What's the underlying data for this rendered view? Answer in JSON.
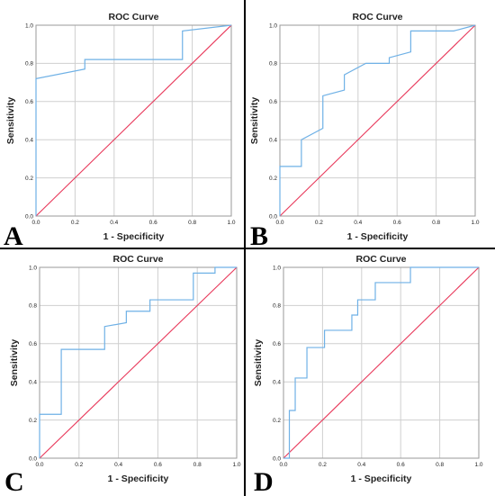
{
  "colors": {
    "roc_curve": "#6fb1e6",
    "reference_line": "#e8385a",
    "grid": "#cfcfcf",
    "divider": "#000000"
  },
  "chart_data": [
    {
      "type": "line",
      "panel_label": "A",
      "title": "ROC Curve",
      "xlabel": "1 - Specificity",
      "ylabel": "Sensitivity",
      "xlim": [
        0,
        1
      ],
      "ylim": [
        0,
        1
      ],
      "xticks": [
        "0.0",
        "0.2",
        "0.4",
        "0.6",
        "0.8",
        "1.0"
      ],
      "yticks": [
        "0.0",
        "0.2",
        "0.4",
        "0.6",
        "0.8",
        "1.0"
      ],
      "grid": true,
      "series": [
        {
          "x": [
            0,
            0,
            0,
            0.25,
            0.25,
            0.75,
            0.75,
            1.0
          ],
          "y": [
            0,
            0.72,
            0.72,
            0.77,
            0.82,
            0.82,
            0.97,
            1.0
          ]
        },
        {
          "x": [
            0,
            1
          ],
          "y": [
            0,
            1
          ]
        }
      ]
    },
    {
      "type": "line",
      "panel_label": "B",
      "title": "ROC Curve",
      "xlabel": "1 - Specificity",
      "ylabel": "Sensitivity",
      "xlim": [
        0,
        1
      ],
      "ylim": [
        0,
        1
      ],
      "xticks": [
        "0.0",
        "0.2",
        "0.4",
        "0.6",
        "0.8",
        "1.0"
      ],
      "yticks": [
        "0.0",
        "0.2",
        "0.4",
        "0.6",
        "0.8",
        "1.0"
      ],
      "grid": true,
      "series": [
        {
          "x": [
            0,
            0,
            0.11,
            0.11,
            0.22,
            0.22,
            0.33,
            0.33,
            0.44,
            0.56,
            0.56,
            0.67,
            0.67,
            0.89,
            1.0
          ],
          "y": [
            0,
            0.26,
            0.26,
            0.4,
            0.46,
            0.63,
            0.66,
            0.74,
            0.8,
            0.8,
            0.83,
            0.86,
            0.97,
            0.97,
            1.0
          ]
        },
        {
          "x": [
            0,
            1
          ],
          "y": [
            0,
            1
          ]
        }
      ]
    },
    {
      "type": "line",
      "panel_label": "C",
      "title": "ROC Curve",
      "xlabel": "1 - Specificity",
      "ylabel": "Sensitivity",
      "xlim": [
        0,
        1
      ],
      "ylim": [
        0,
        1
      ],
      "xticks": [
        "0.0",
        "0.2",
        "0.4",
        "0.6",
        "0.8",
        "1.0"
      ],
      "yticks": [
        "0.0",
        "0.2",
        "0.4",
        "0.6",
        "0.8",
        "1.0"
      ],
      "grid": true,
      "series": [
        {
          "x": [
            0,
            0,
            0.11,
            0.11,
            0.33,
            0.33,
            0.44,
            0.44,
            0.56,
            0.56,
            0.78,
            0.78,
            0.89,
            0.89,
            1.0
          ],
          "y": [
            0,
            0.23,
            0.23,
            0.57,
            0.57,
            0.69,
            0.71,
            0.77,
            0.77,
            0.83,
            0.83,
            0.97,
            0.97,
            1.0,
            1.0
          ]
        },
        {
          "x": [
            0,
            1
          ],
          "y": [
            0,
            1
          ]
        }
      ]
    },
    {
      "type": "line",
      "panel_label": "D",
      "title": "ROC Curve",
      "xlabel": "1 - Specificity",
      "ylabel": "Sensitivity",
      "xlim": [
        0,
        1
      ],
      "ylim": [
        0,
        1
      ],
      "xticks": [
        "0.0",
        "0.2",
        "0.4",
        "0.6",
        "0.8",
        "1.0"
      ],
      "yticks": [
        "0.0",
        "0.2",
        "0.4",
        "0.6",
        "0.8",
        "1.0"
      ],
      "grid": true,
      "series": [
        {
          "x": [
            0,
            0.03,
            0.03,
            0.06,
            0.06,
            0.12,
            0.12,
            0.21,
            0.21,
            0.26,
            0.35,
            0.35,
            0.38,
            0.38,
            0.47,
            0.47,
            0.65,
            0.65,
            1.0
          ],
          "y": [
            0,
            0,
            0.25,
            0.25,
            0.42,
            0.42,
            0.58,
            0.58,
            0.67,
            0.67,
            0.67,
            0.75,
            0.75,
            0.83,
            0.83,
            0.92,
            0.92,
            1.0,
            1.0
          ]
        },
        {
          "x": [
            0,
            1
          ],
          "y": [
            0,
            1
          ]
        }
      ]
    }
  ]
}
